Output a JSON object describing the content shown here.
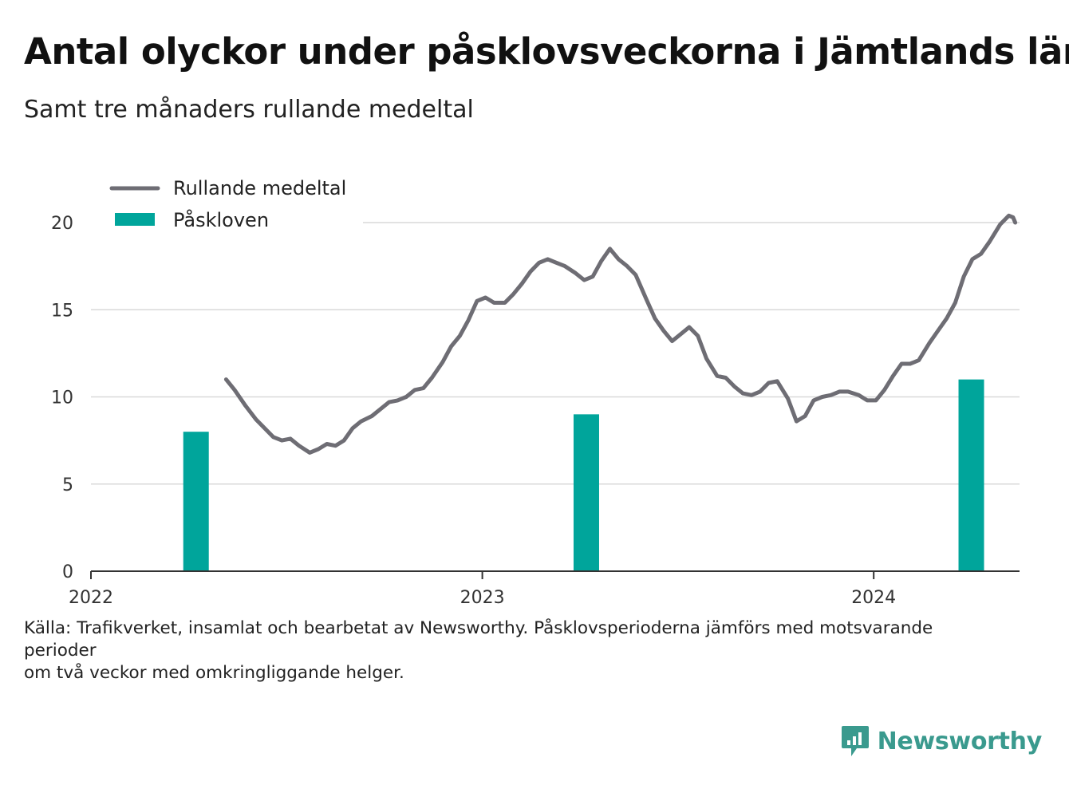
{
  "header": {
    "title": "Antal olyckor under påsklovsveckorna i Jämtlands län",
    "subtitle": "Samt tre månaders rullande medeltal"
  },
  "footer": {
    "source_line1": "Källa: Trafikverket, insamlat och bearbetat av Newsworthy. Påsklovsperioderna jämförs med motsvarande perioder",
    "source_line2": "om två veckor med omkringliggande helger.",
    "brand": "Newsworthy",
    "brand_icon": "newsworthy-logo-icon"
  },
  "colors": {
    "line": "#6e6d74",
    "bar": "#00a59b",
    "grid": "#d9d9d9",
    "axis": "#333333",
    "brand": "#3a9a8e"
  },
  "chart_data": {
    "type": "bar+line",
    "title": "Antal olyckor under påsklovsveckorna i Jämtlands län",
    "subtitle": "Samt tre månaders rullande medeltal",
    "xlabel": "",
    "ylabel": "",
    "xlim": [
      "2022-01-01",
      "2024-05-16"
    ],
    "ylim": [
      0,
      21
    ],
    "y_ticks": [
      0,
      5,
      10,
      15,
      20
    ],
    "x_ticks": [
      {
        "date": "2022-01-01",
        "label": "2022"
      },
      {
        "date": "2023-01-01",
        "label": "2023"
      },
      {
        "date": "2024-01-01",
        "label": "2024"
      }
    ],
    "grid": "horizontal",
    "legend": {
      "placement": "top-left",
      "entries": [
        {
          "label": "Rullande medeltal",
          "kind": "line"
        },
        {
          "label": "Påskloven",
          "kind": "bar"
        }
      ]
    },
    "series": [
      {
        "name": "Påskloven",
        "kind": "bar",
        "points": [
          {
            "date": "2022-04-09",
            "value": 8
          },
          {
            "date": "2023-04-08",
            "value": 9
          },
          {
            "date": "2024-04-01",
            "value": 11
          }
        ]
      },
      {
        "name": "Rullande medeltal",
        "kind": "line",
        "points": [
          [
            "2022-05-07",
            11.0
          ],
          [
            "2022-05-15",
            10.4
          ],
          [
            "2022-05-25",
            9.5
          ],
          [
            "2022-06-04",
            8.7
          ],
          [
            "2022-06-12",
            8.2
          ],
          [
            "2022-06-20",
            7.7
          ],
          [
            "2022-06-28",
            7.5
          ],
          [
            "2022-07-06",
            7.6
          ],
          [
            "2022-07-14",
            7.2
          ],
          [
            "2022-07-24",
            6.8
          ],
          [
            "2022-08-01",
            7.0
          ],
          [
            "2022-08-09",
            7.3
          ],
          [
            "2022-08-17",
            7.2
          ],
          [
            "2022-08-25",
            7.5
          ],
          [
            "2022-09-02",
            8.2
          ],
          [
            "2022-09-10",
            8.6
          ],
          [
            "2022-09-20",
            8.9
          ],
          [
            "2022-09-28",
            9.3
          ],
          [
            "2022-10-06",
            9.7
          ],
          [
            "2022-10-14",
            9.8
          ],
          [
            "2022-10-22",
            10.0
          ],
          [
            "2022-10-30",
            10.4
          ],
          [
            "2022-11-07",
            10.5
          ],
          [
            "2022-11-15",
            11.1
          ],
          [
            "2022-11-25",
            12.0
          ],
          [
            "2022-12-03",
            12.9
          ],
          [
            "2022-12-11",
            13.5
          ],
          [
            "2022-12-19",
            14.4
          ],
          [
            "2022-12-27",
            15.5
          ],
          [
            "2023-01-04",
            15.7
          ],
          [
            "2023-01-12",
            15.4
          ],
          [
            "2023-01-22",
            15.4
          ],
          [
            "2023-01-30",
            15.9
          ],
          [
            "2023-02-07",
            16.5
          ],
          [
            "2023-02-15",
            17.2
          ],
          [
            "2023-02-23",
            17.7
          ],
          [
            "2023-03-03",
            17.9
          ],
          [
            "2023-03-11",
            17.7
          ],
          [
            "2023-03-19",
            17.5
          ],
          [
            "2023-03-29",
            17.1
          ],
          [
            "2023-04-06",
            16.7
          ],
          [
            "2023-04-14",
            16.9
          ],
          [
            "2023-04-22",
            17.8
          ],
          [
            "2023-04-30",
            18.5
          ],
          [
            "2023-05-08",
            17.9
          ],
          [
            "2023-05-16",
            17.5
          ],
          [
            "2023-05-24",
            17.0
          ],
          [
            "2023-06-03",
            15.6
          ],
          [
            "2023-06-11",
            14.5
          ],
          [
            "2023-06-19",
            13.8
          ],
          [
            "2023-06-27",
            13.2
          ],
          [
            "2023-07-05",
            13.6
          ],
          [
            "2023-07-13",
            14.0
          ],
          [
            "2023-07-21",
            13.5
          ],
          [
            "2023-07-29",
            12.2
          ],
          [
            "2023-08-08",
            11.2
          ],
          [
            "2023-08-16",
            11.1
          ],
          [
            "2023-08-24",
            10.6
          ],
          [
            "2023-09-01",
            10.2
          ],
          [
            "2023-09-09",
            10.1
          ],
          [
            "2023-09-17",
            10.3
          ],
          [
            "2023-09-25",
            10.8
          ],
          [
            "2023-10-03",
            10.9
          ],
          [
            "2023-10-13",
            9.9
          ],
          [
            "2023-10-21",
            8.6
          ],
          [
            "2023-10-29",
            8.9
          ],
          [
            "2023-11-06",
            9.8
          ],
          [
            "2023-11-14",
            10.0
          ],
          [
            "2023-11-22",
            10.1
          ],
          [
            "2023-11-30",
            10.3
          ],
          [
            "2023-12-08",
            10.3
          ],
          [
            "2023-12-18",
            10.1
          ],
          [
            "2023-12-26",
            9.8
          ],
          [
            "2024-01-03",
            9.8
          ],
          [
            "2024-01-11",
            10.4
          ],
          [
            "2024-01-19",
            11.2
          ],
          [
            "2024-01-27",
            11.9
          ],
          [
            "2024-02-04",
            11.9
          ],
          [
            "2024-02-12",
            12.1
          ],
          [
            "2024-02-22",
            13.1
          ],
          [
            "2024-03-01",
            13.8
          ],
          [
            "2024-03-09",
            14.5
          ],
          [
            "2024-03-17",
            15.4
          ],
          [
            "2024-03-25",
            16.9
          ],
          [
            "2024-04-02",
            17.9
          ],
          [
            "2024-04-10",
            18.2
          ],
          [
            "2024-04-18",
            18.9
          ],
          [
            "2024-04-28",
            19.9
          ],
          [
            "2024-05-06",
            20.4
          ],
          [
            "2024-05-10",
            20.3
          ],
          [
            "2024-05-12",
            20.0
          ]
        ]
      }
    ]
  }
}
